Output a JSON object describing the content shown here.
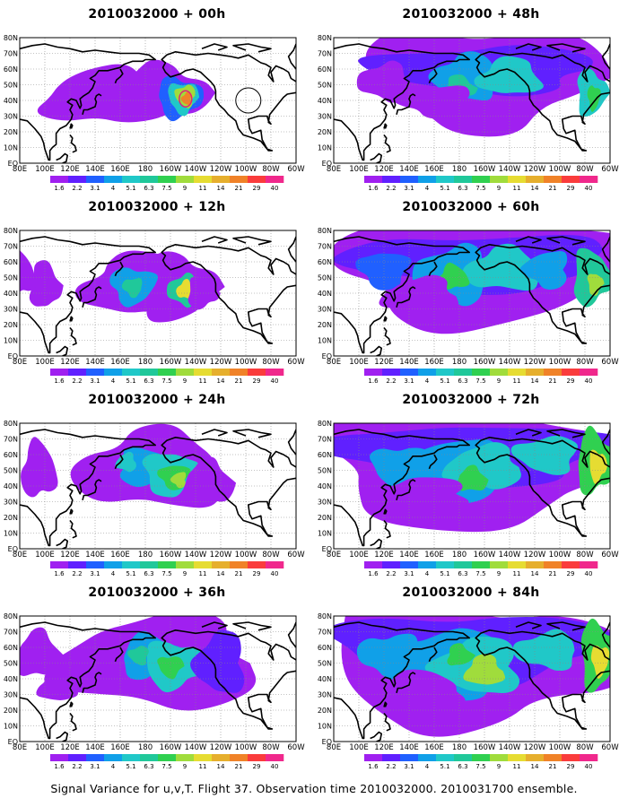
{
  "caption": "Signal Variance for u,v,T. Flight 37. Observation time 2010032000. 2010031700 ensemble.",
  "lat_labels": [
    "EQ",
    "0N",
    "0N",
    "0N",
    "0N",
    "0N",
    "0N",
    "0N",
    "0N"
  ],
  "lat_labels_full": [
    "EQ",
    "10N",
    "20N",
    "30N",
    "40N",
    "50N",
    "60N",
    "70N",
    "80N"
  ],
  "lon_labels": [
    "80E",
    "100E",
    "120E",
    "140E",
    "160E",
    "180",
    "160W",
    "140W",
    "120W",
    "100W",
    "80W",
    "60W"
  ],
  "colorbar": {
    "labels": [
      "1.6",
      "2.2",
      "3.1",
      "4",
      "5.1",
      "6.3",
      "7.5",
      "9",
      "11",
      "14",
      "21",
      "29",
      "40"
    ],
    "colors": [
      "#a020f0",
      "#6020ff",
      "#2060ff",
      "#10a0e8",
      "#20c8c8",
      "#20c89a",
      "#30d050",
      "#a0dc3c",
      "#e6dc32",
      "#e6af2d",
      "#f08228",
      "#fa3c3c",
      "#f0288c"
    ]
  },
  "panels": [
    {
      "title": "2010032000 + 00h",
      "col": 0,
      "row": 0,
      "level": 0
    },
    {
      "title": "2010032000 + 48h",
      "col": 1,
      "row": 0,
      "level": 4
    },
    {
      "title": "2010032000 + 12h",
      "col": 0,
      "row": 1,
      "level": 1
    },
    {
      "title": "2010032000 + 60h",
      "col": 1,
      "row": 1,
      "level": 5
    },
    {
      "title": "2010032000 + 24h",
      "col": 0,
      "row": 2,
      "level": 2
    },
    {
      "title": "2010032000 + 72h",
      "col": 1,
      "row": 2,
      "level": 6
    },
    {
      "title": "2010032000 + 36h",
      "col": 0,
      "row": 3,
      "level": 3
    },
    {
      "title": "2010032000 + 84h",
      "col": 1,
      "row": 3,
      "level": 7
    }
  ]
}
